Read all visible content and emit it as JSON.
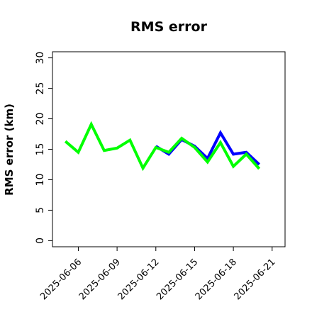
{
  "chart_data": {
    "type": "line",
    "title": "RMS error",
    "xlabel": "",
    "ylabel": "RMS error (km)",
    "x": [
      "2025-06-05",
      "2025-06-06",
      "2025-06-07",
      "2025-06-08",
      "2025-06-09",
      "2025-06-10",
      "2025-06-11",
      "2025-06-12",
      "2025-06-13",
      "2025-06-14",
      "2025-06-15",
      "2025-06-16",
      "2025-06-17",
      "2025-06-18",
      "2025-06-19",
      "2025-06-20"
    ],
    "series": [
      {
        "color": "#0000ff",
        "values": [
          null,
          null,
          null,
          null,
          null,
          null,
          null,
          15.5,
          14.2,
          16.6,
          15.5,
          13.5,
          17.7,
          14.2,
          14.5,
          12.5
        ]
      },
      {
        "color": "#00ff00",
        "values": [
          16.3,
          14.5,
          19.1,
          14.8,
          15.2,
          16.5,
          11.9,
          15.3,
          14.5,
          16.8,
          15.3,
          12.9,
          16.1,
          12.2,
          14.2,
          11.8
        ]
      }
    ],
    "xticks": [
      "2025-06-06",
      "2025-06-09",
      "2025-06-12",
      "2025-06-15",
      "2025-06-18",
      "2025-06-21"
    ],
    "xtick_colors": [
      "#000000",
      "#000000",
      "#008000",
      "#000000",
      "#000000",
      "#000000"
    ],
    "yticks": [
      "0",
      "5",
      "10",
      "15",
      "20",
      "25",
      "30"
    ],
    "xlim": [
      "2025-06-04",
      "2025-06-22"
    ],
    "ylim": [
      -1,
      31
    ],
    "grid": false,
    "legend": "none"
  }
}
